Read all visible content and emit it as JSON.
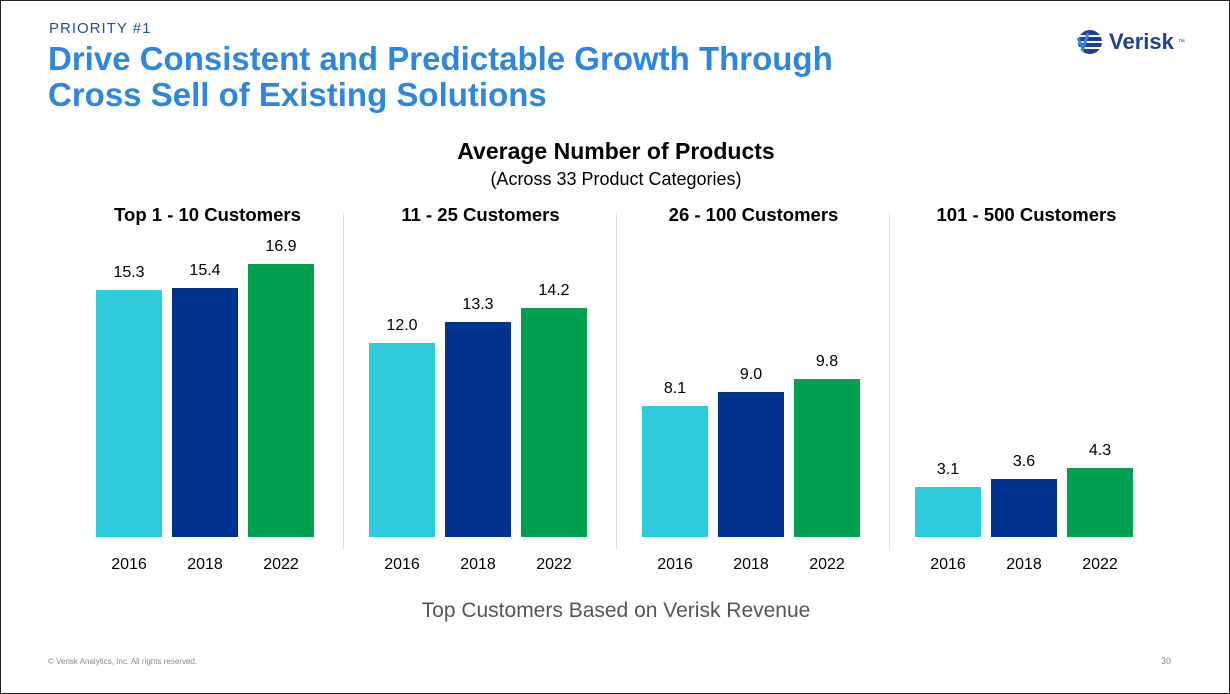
{
  "header": {
    "kicker": "PRIORITY #1",
    "title_line1": "Drive Consistent and Predictable Growth Through",
    "title_line2": "Cross Sell of Existing Solutions",
    "logo_text": "Verisk",
    "logo_tm": "™"
  },
  "footer": {
    "copyright": "© Verisk Analytics, Inc. All rights reserved.",
    "page_number": "30"
  },
  "chart_data": {
    "type": "bar",
    "title": "Average Number of Products",
    "subtitle": "(Across 33 Product Categories)",
    "xlabel": "Top Customers Based on Verisk Revenue",
    "categories": [
      "2016",
      "2018",
      "2022"
    ],
    "colors": {
      "2016": "#2ecbdc",
      "2018": "#00338d",
      "2022": "#00a050"
    },
    "grid": false,
    "ylim": [
      0,
      17
    ],
    "panels": [
      {
        "title": "Top 1 - 10 Customers",
        "values": [
          15.3,
          15.4,
          16.9
        ],
        "labels": [
          "15.3",
          "15.4",
          "16.9"
        ]
      },
      {
        "title": "11 - 25 Customers",
        "values": [
          12.0,
          13.3,
          14.2
        ],
        "labels": [
          "12.0",
          "13.3",
          "14.2"
        ]
      },
      {
        "title": "26 - 100 Customers",
        "values": [
          8.1,
          9.0,
          9.8
        ],
        "labels": [
          "8.1",
          "9.0",
          "9.8"
        ]
      },
      {
        "title": "101 - 500 Customers",
        "values": [
          3.1,
          3.6,
          4.3
        ],
        "labels": [
          "3.1",
          "3.6",
          "4.3"
        ]
      }
    ]
  }
}
